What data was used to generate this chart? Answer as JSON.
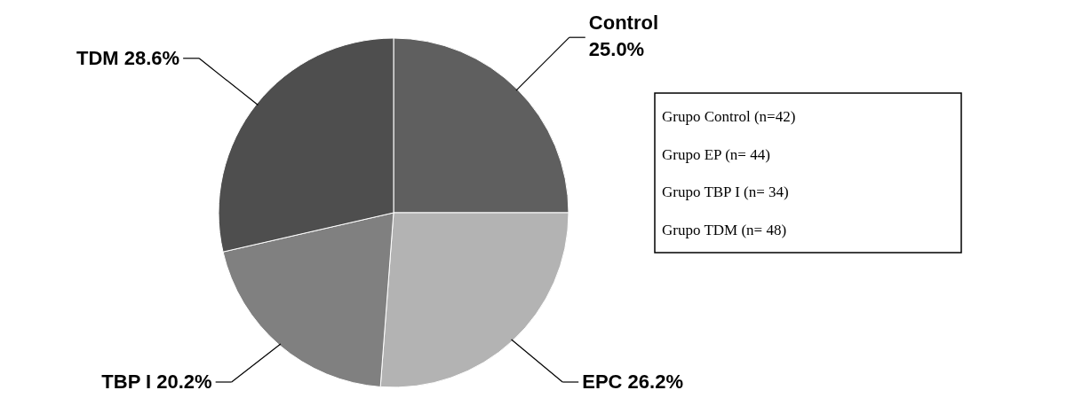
{
  "chart_data": {
    "type": "pie",
    "categories": [
      "Control",
      "EPC",
      "TBP I",
      "TDM"
    ],
    "values": [
      25.0,
      26.2,
      20.2,
      28.6
    ],
    "value_labels": [
      "25.0%",
      "26.2%",
      "20.2%",
      "28.6%"
    ],
    "colors": [
      "#5f5f5f",
      "#b3b3b3",
      "#808080",
      "#4e4e4e"
    ],
    "annotations": [
      "Grupo Control (n=42)",
      "Grupo EP      (n= 44)",
      "Grupo TBP I   (n= 34)",
      "Grupo TDM     (n= 48)"
    ]
  }
}
